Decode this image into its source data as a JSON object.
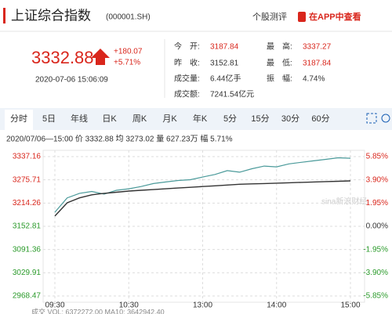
{
  "header": {
    "title": "上证综合指数",
    "code": "(000001.SH)",
    "links": [
      "个股测评",
      "在APP中查看"
    ]
  },
  "quote": {
    "price": "3332.88",
    "change": "+180.07",
    "change_pct": "+5.71%",
    "time": "2020-07-06 15:06:09"
  },
  "stats": [
    {
      "label": "今　开:",
      "value": "3187.84"
    },
    {
      "label": "昨　收:",
      "value": "3152.81"
    },
    {
      "label": "成交量:",
      "value": "6.44亿手"
    },
    {
      "label": "成交额:",
      "value": "7241.54亿元"
    },
    {
      "label": "最　高:",
      "value": "3337.27"
    },
    {
      "label": "最　低:",
      "value": "3187.84"
    },
    {
      "label": "振　幅:",
      "value": "4.74%"
    }
  ],
  "tabs": [
    "分时",
    "5日",
    "年线",
    "日K",
    "周K",
    "月K",
    "年K",
    "5分",
    "15分",
    "30分",
    "60分"
  ],
  "info_line": "2020/07/06—15:00 价 3332.88 均 3273.02 量 627.23万 幅 5.71%",
  "watermark": "sina新浪财经",
  "footer": "成交 VOL: 6372272.00 MA10: 3642942.40",
  "chart_data": {
    "type": "line",
    "x": [
      0,
      10,
      20,
      30,
      40,
      50,
      60,
      70,
      80,
      90,
      100,
      110,
      120,
      130,
      140,
      150,
      160,
      170,
      180,
      190,
      200,
      210,
      220,
      230,
      240
    ],
    "xlim": [
      0,
      240
    ],
    "xticks": [
      {
        "value": 0,
        "label": "09:30"
      },
      {
        "value": 60,
        "label": "10:30"
      },
      {
        "value": 120,
        "label": "13:00"
      },
      {
        "value": 180,
        "label": "14:00"
      },
      {
        "value": 240,
        "label": "15:00"
      }
    ],
    "ylim": [
      2968.47,
      3337.16
    ],
    "yticks": [
      2968.47,
      3029.91,
      3091.36,
      3152.81,
      3214.26,
      3275.71,
      3337.16
    ],
    "y2lim": [
      -5.85,
      5.85
    ],
    "y2ticks": [
      {
        "value": -5.85,
        "label": "-5.85%"
      },
      {
        "value": -3.9,
        "label": "-3.90%"
      },
      {
        "value": -1.95,
        "label": "-1.95%"
      },
      {
        "value": 0,
        "label": "0.00%"
      },
      {
        "value": 1.95,
        "label": "1.95%"
      },
      {
        "value": 3.9,
        "label": "3.90%"
      },
      {
        "value": 5.85,
        "label": "5.85%"
      }
    ],
    "grid": true,
    "series": [
      {
        "name": "价",
        "color": "#4a9a9a",
        "values": [
          3190,
          3228,
          3240,
          3245,
          3238,
          3248,
          3252,
          3258,
          3266,
          3270,
          3274,
          3276,
          3283,
          3290,
          3300,
          3296,
          3305,
          3312,
          3310,
          3318,
          3322,
          3326,
          3330,
          3334,
          3332.88
        ]
      },
      {
        "name": "均",
        "color": "#333333",
        "values": [
          3180,
          3215,
          3228,
          3236,
          3240,
          3243,
          3246,
          3248,
          3250,
          3252,
          3254,
          3256,
          3258,
          3260,
          3262,
          3264,
          3265,
          3266,
          3267,
          3268,
          3269,
          3270,
          3271,
          3272,
          3273.02
        ]
      }
    ]
  }
}
